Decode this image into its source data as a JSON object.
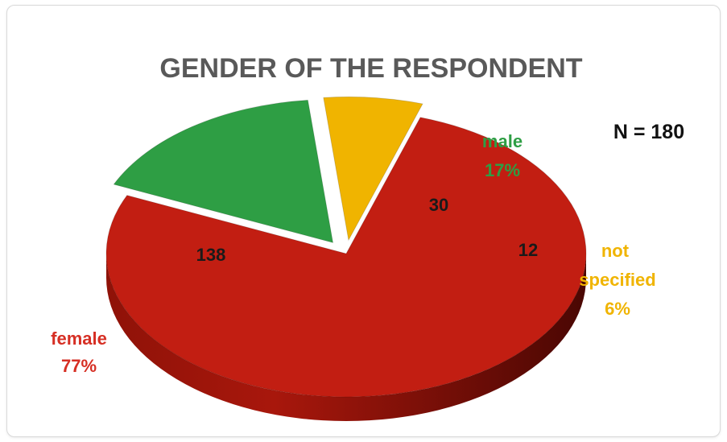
{
  "chart_data": {
    "type": "pie",
    "title": "GENDER OF THE RESPONDENT",
    "annotation": "N = 180",
    "categories": [
      "female",
      "male",
      "not specified"
    ],
    "values": [
      138,
      30,
      12
    ],
    "percent_labels": [
      "77%",
      "17%",
      "6%"
    ],
    "colors": [
      "#c21e12",
      "#2e9e44",
      "#f0b400"
    ],
    "label_colors": [
      "#d62f24",
      "#2e9e44",
      "#f0b400"
    ],
    "three_d": true,
    "exploded": [
      "male",
      "not specified"
    ]
  }
}
